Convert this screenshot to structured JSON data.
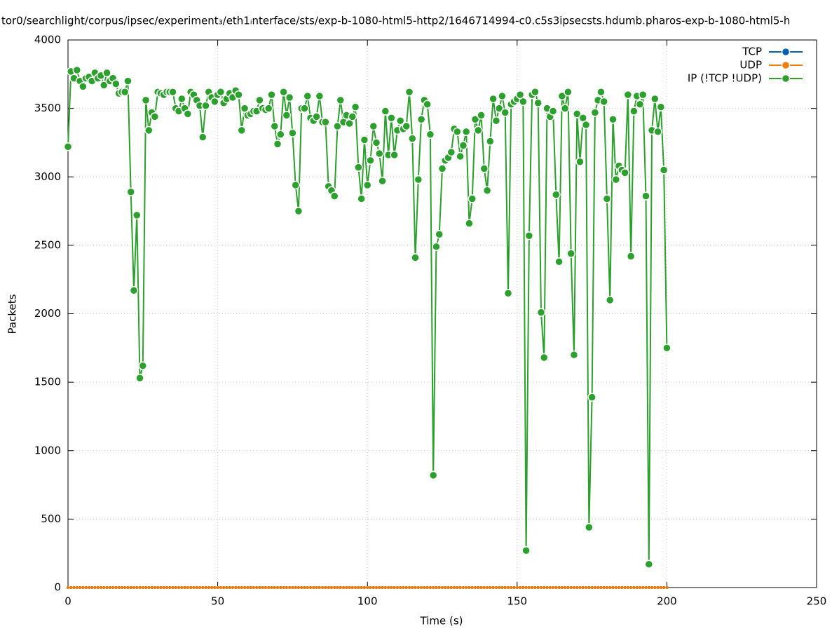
{
  "chart_data": {
    "type": "line",
    "title": "tor0/searchlight/corpus/ipsec/experiment₃/eth1ᵢnterface/sts/exp-b-1080-html5-http2/1646714994-c0.c5s3ipsecsts.hdumb.pharos-exp-b-1080-html5-h",
    "xlabel": "Time (s)",
    "ylabel": "Packets",
    "xlim": [
      0,
      250
    ],
    "xticks": [
      0,
      50,
      100,
      150,
      200,
      250
    ],
    "ylim": [
      0,
      4000
    ],
    "yticks": [
      0,
      500,
      1000,
      1500,
      2000,
      2500,
      3000,
      3500,
      4000
    ],
    "grid": true,
    "legend": "top-right",
    "x": [
      0,
      1,
      2,
      3,
      4,
      5,
      6,
      7,
      8,
      9,
      10,
      11,
      12,
      13,
      14,
      15,
      16,
      17,
      18,
      19,
      20,
      21,
      22,
      23,
      24,
      25,
      26,
      27,
      28,
      29,
      30,
      31,
      32,
      33,
      34,
      35,
      36,
      37,
      38,
      39,
      40,
      41,
      42,
      43,
      44,
      45,
      46,
      47,
      48,
      49,
      50,
      51,
      52,
      53,
      54,
      55,
      56,
      57,
      58,
      59,
      60,
      61,
      62,
      63,
      64,
      65,
      66,
      67,
      68,
      69,
      70,
      71,
      72,
      73,
      74,
      75,
      76,
      77,
      78,
      79,
      80,
      81,
      82,
      83,
      84,
      85,
      86,
      87,
      88,
      89,
      90,
      91,
      92,
      93,
      94,
      95,
      96,
      97,
      98,
      99,
      100,
      101,
      102,
      103,
      104,
      105,
      106,
      107,
      108,
      109,
      110,
      111,
      112,
      113,
      114,
      115,
      116,
      117,
      118,
      119,
      120,
      121,
      122,
      123,
      124,
      125,
      126,
      127,
      128,
      129,
      130,
      131,
      132,
      133,
      134,
      135,
      136,
      137,
      138,
      139,
      140,
      141,
      142,
      143,
      144,
      145,
      146,
      147,
      148,
      149,
      150,
      151,
      152,
      153,
      154,
      155,
      156,
      157,
      158,
      159,
      160,
      161,
      162,
      163,
      164,
      165,
      166,
      167,
      168,
      169,
      170,
      171,
      172,
      173,
      174,
      175,
      176,
      177,
      178,
      179,
      180,
      181,
      182,
      183,
      184,
      185,
      186,
      187,
      188,
      189,
      190,
      191,
      192,
      193,
      194,
      195,
      196,
      197,
      198,
      199,
      200
    ],
    "series": [
      {
        "name": "TCP",
        "color": "#0060ad",
        "values": [
          0,
          0,
          0,
          0,
          0,
          0,
          0,
          0,
          0,
          0,
          0,
          0,
          0,
          0,
          0,
          0,
          0,
          0,
          0,
          0,
          0,
          0,
          0,
          0,
          0,
          0,
          0,
          0,
          0,
          0,
          0,
          0,
          0,
          0,
          0,
          0,
          0,
          0,
          0,
          0,
          0,
          0,
          0,
          0,
          0,
          0,
          0,
          0,
          0,
          0,
          0,
          0,
          0,
          0,
          0,
          0,
          0,
          0,
          0,
          0,
          0,
          0,
          0,
          0,
          0,
          0,
          0,
          0,
          0,
          0,
          0,
          0,
          0,
          0,
          0,
          0,
          0,
          0,
          0,
          0,
          0,
          0,
          0,
          0,
          0,
          0,
          0,
          0,
          0,
          0,
          0,
          0,
          0,
          0,
          0,
          0,
          0,
          0,
          0,
          0,
          0,
          0,
          0,
          0,
          0,
          0,
          0,
          0,
          0,
          0,
          0,
          0,
          0,
          0,
          0,
          0,
          0,
          0,
          0,
          0,
          0,
          0,
          0,
          0,
          0,
          0,
          0,
          0,
          0,
          0,
          0,
          0,
          0,
          0,
          0,
          0,
          0,
          0,
          0,
          0,
          0,
          0,
          0,
          0,
          0,
          0,
          0,
          0,
          0,
          0,
          0,
          0,
          0,
          0,
          0,
          0,
          0,
          0,
          0,
          0,
          0,
          0,
          0,
          0,
          0,
          0,
          0,
          0,
          0,
          0,
          0,
          0,
          0,
          0,
          0,
          0,
          0,
          0,
          0,
          0,
          0,
          0,
          0,
          0,
          0,
          0,
          0,
          0,
          0,
          0,
          0,
          0,
          0,
          0,
          0,
          0,
          0,
          0,
          0,
          0,
          0
        ]
      },
      {
        "name": "UDP",
        "color": "#f07d0a",
        "values": [
          0,
          0,
          0,
          0,
          0,
          0,
          0,
          0,
          0,
          0,
          0,
          0,
          0,
          0,
          0,
          0,
          0,
          0,
          0,
          0,
          0,
          0,
          0,
          0,
          0,
          0,
          0,
          0,
          0,
          0,
          0,
          0,
          0,
          0,
          0,
          0,
          0,
          0,
          0,
          0,
          0,
          0,
          0,
          0,
          0,
          0,
          0,
          0,
          0,
          0,
          0,
          0,
          0,
          0,
          0,
          0,
          0,
          0,
          0,
          0,
          0,
          0,
          0,
          0,
          0,
          0,
          0,
          0,
          0,
          0,
          0,
          0,
          0,
          0,
          0,
          0,
          0,
          0,
          0,
          0,
          0,
          0,
          0,
          0,
          0,
          0,
          0,
          0,
          0,
          0,
          0,
          0,
          0,
          0,
          0,
          0,
          0,
          0,
          0,
          0,
          0,
          0,
          0,
          0,
          0,
          0,
          0,
          0,
          0,
          0,
          0,
          0,
          0,
          0,
          0,
          0,
          0,
          0,
          0,
          0,
          0,
          0,
          0,
          0,
          0,
          0,
          0,
          0,
          0,
          0,
          0,
          0,
          0,
          0,
          0,
          0,
          0,
          0,
          0,
          0,
          0,
          0,
          0,
          0,
          0,
          0,
          0,
          0,
          0,
          0,
          0,
          0,
          0,
          0,
          0,
          0,
          0,
          0,
          0,
          0,
          0,
          0,
          0,
          0,
          0,
          0,
          0,
          0,
          0,
          0,
          0,
          0,
          0,
          0,
          0,
          0,
          0,
          0,
          0,
          0,
          0,
          0,
          0,
          0,
          0,
          0,
          0,
          0,
          0,
          0,
          0,
          0,
          0,
          0,
          0,
          0,
          0,
          0,
          0,
          0,
          0
        ]
      },
      {
        "name": "IP (!TCP  !UDP)",
        "color": "#2ca02c",
        "values": [
          3220,
          3770,
          3720,
          3780,
          3700,
          3660,
          3720,
          3730,
          3700,
          3760,
          3720,
          3740,
          3670,
          3760,
          3700,
          3720,
          3680,
          3610,
          3620,
          3620,
          3700,
          2890,
          2170,
          2720,
          1530,
          1620,
          3560,
          3340,
          3470,
          3440,
          3620,
          3610,
          3600,
          3620,
          3620,
          3620,
          3500,
          3480,
          3570,
          3500,
          3460,
          3620,
          3600,
          3560,
          3520,
          3290,
          3520,
          3620,
          3580,
          3550,
          3600,
          3620,
          3540,
          3570,
          3610,
          3580,
          3630,
          3600,
          3340,
          3500,
          3450,
          3460,
          3480,
          3480,
          3560,
          3500,
          3490,
          3500,
          3600,
          3370,
          3240,
          3310,
          3620,
          3450,
          3580,
          3320,
          2940,
          2750,
          3500,
          3500,
          3590,
          3430,
          3410,
          3440,
          3590,
          3400,
          3400,
          2930,
          2900,
          2860,
          3370,
          3560,
          3400,
          3450,
          3390,
          3440,
          3510,
          3070,
          2840,
          3270,
          2940,
          3120,
          3370,
          3250,
          3170,
          2970,
          3480,
          3160,
          3430,
          3160,
          3340,
          3410,
          3350,
          3370,
          3620,
          3280,
          2410,
          2980,
          3420,
          3560,
          3530,
          3310,
          820,
          2490,
          2580,
          3060,
          3120,
          3140,
          3180,
          3350,
          3330,
          3150,
          3230,
          3330,
          2660,
          2840,
          3420,
          3340,
          3450,
          3060,
          2900,
          3260,
          3570,
          3410,
          3500,
          3590,
          3470,
          2150,
          3530,
          3550,
          3570,
          3600,
          3550,
          270,
          2570,
          3600,
          3620,
          3540,
          2010,
          1680,
          3500,
          3440,
          3480,
          2870,
          2380,
          3590,
          3500,
          3620,
          2440,
          1700,
          3460,
          3110,
          3430,
          3380,
          440,
          1390,
          3470,
          3560,
          3620,
          3550,
          2840,
          2100,
          3420,
          2980,
          3080,
          3050,
          3030,
          3600,
          2420,
          3480,
          3590,
          3530,
          3600,
          2860,
          170,
          3340,
          3570,
          3330,
          3510,
          3050,
          1750
        ]
      }
    ]
  }
}
